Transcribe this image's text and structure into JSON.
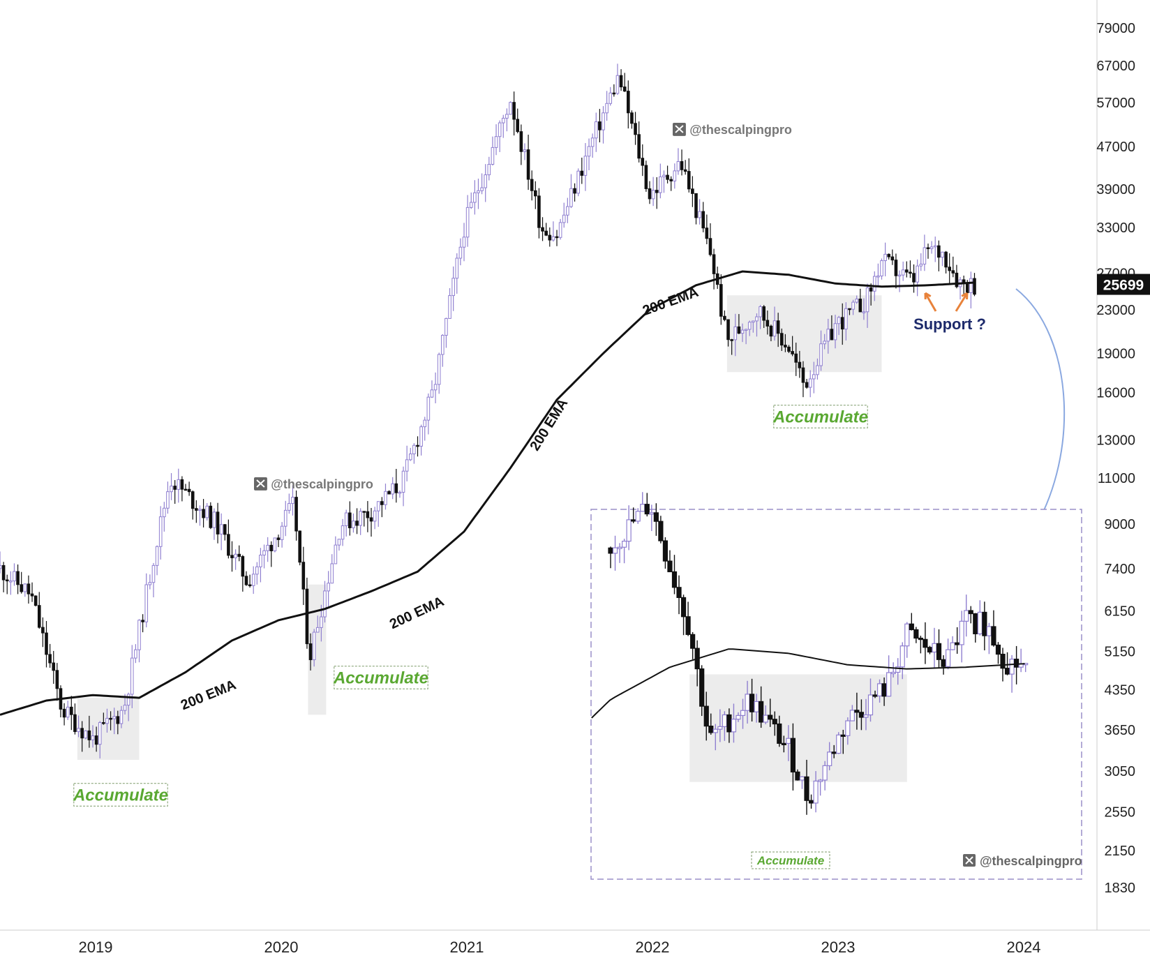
{
  "chart_data": {
    "type": "candlestick",
    "title": "",
    "scale": "log",
    "ylim": [
      1700,
      82000
    ],
    "xlim": [
      "2018-07",
      "2024-11"
    ],
    "y_ticks": [
      "79000",
      "67000",
      "57000",
      "47000",
      "39000",
      "33000",
      "27000",
      "23000",
      "19000",
      "16000",
      "13000",
      "11000",
      "9000",
      "7400",
      "6150",
      "5150",
      "4350",
      "3650",
      "3050",
      "2550",
      "2150",
      "1830"
    ],
    "x_ticks": [
      "2019",
      "2020",
      "2021",
      "2022",
      "2023",
      "2024"
    ],
    "last_price": "25699",
    "colors": {
      "up": "#8f7fd0",
      "down": "#111111",
      "accumulate": "#5aa832",
      "support": "#1d2a6b",
      "arrow": "#e8823a",
      "curve": "#8aa8e0",
      "inset_border": "#9a8fc8"
    },
    "ema_label": "200 EMA",
    "accumulate_label": "Accumulate",
    "support_label": "Support ?",
    "watermark": "@thescalpingpro",
    "watermark_icon": "x-logo-icon",
    "ema_200": [
      [
        "2018-07",
        3900
      ],
      [
        "2018-10",
        4150
      ],
      [
        "2019-01",
        4250
      ],
      [
        "2019-04",
        4200
      ],
      [
        "2019-07",
        4700
      ],
      [
        "2019-10",
        5400
      ],
      [
        "2020-01",
        5900
      ],
      [
        "2020-04",
        6200
      ],
      [
        "2020-07",
        6700
      ],
      [
        "2020-10",
        7300
      ],
      [
        "2021-01",
        8700
      ],
      [
        "2021-04",
        11500
      ],
      [
        "2021-07",
        15500
      ],
      [
        "2021-10",
        19000
      ],
      [
        "2022-01",
        23000
      ],
      [
        "2022-04",
        25600
      ],
      [
        "2022-07",
        27200
      ],
      [
        "2022-10",
        26800
      ],
      [
        "2023-01",
        25800
      ],
      [
        "2023-04",
        25450
      ],
      [
        "2023-07",
        25600
      ],
      [
        "2023-10",
        25900
      ]
    ],
    "price_path": [
      [
        "2018-07",
        7400
      ],
      [
        "2018-09",
        6600
      ],
      [
        "2018-11",
        4000
      ],
      [
        "2019-01",
        3500
      ],
      [
        "2019-03",
        4000
      ],
      [
        "2019-05",
        8000
      ],
      [
        "2019-06",
        11000
      ],
      [
        "2019-09",
        9000
      ],
      [
        "2019-11",
        7000
      ],
      [
        "2020-02",
        9800
      ],
      [
        "2020-03",
        5000
      ],
      [
        "2020-05",
        9000
      ],
      [
        "2020-07",
        9500
      ],
      [
        "2020-09",
        10800
      ],
      [
        "2020-11",
        16000
      ],
      [
        "2021-01",
        33000
      ],
      [
        "2021-04",
        58000
      ],
      [
        "2021-06",
        33000
      ],
      [
        "2021-07",
        32000
      ],
      [
        "2021-09",
        46000
      ],
      [
        "2021-11",
        64000
      ],
      [
        "2022-01",
        38000
      ],
      [
        "2022-03",
        44000
      ],
      [
        "2022-05",
        29000
      ],
      [
        "2022-06",
        20000
      ],
      [
        "2022-08",
        23000
      ],
      [
        "2022-10",
        19500
      ],
      [
        "2022-11",
        16500
      ],
      [
        "2023-01",
        21500
      ],
      [
        "2023-03",
        24000
      ],
      [
        "2023-04",
        28500
      ],
      [
        "2023-06",
        26000
      ],
      [
        "2023-07",
        30000
      ],
      [
        "2023-08",
        29500
      ],
      [
        "2023-09",
        26000
      ],
      [
        "2023-10",
        25699
      ]
    ],
    "accumulation_zones": [
      {
        "from": "2018-12",
        "to": "2019-03",
        "low": 3200,
        "high": 4200
      },
      {
        "from": "2020-03",
        "to": "2020-03",
        "low": 3900,
        "high": 6900
      },
      {
        "from": "2022-06",
        "to": "2023-03",
        "low": 17500,
        "high": 24500
      }
    ],
    "inset": {
      "description_label": "Accumulate",
      "watermark": "@thescalpingpro"
    }
  }
}
